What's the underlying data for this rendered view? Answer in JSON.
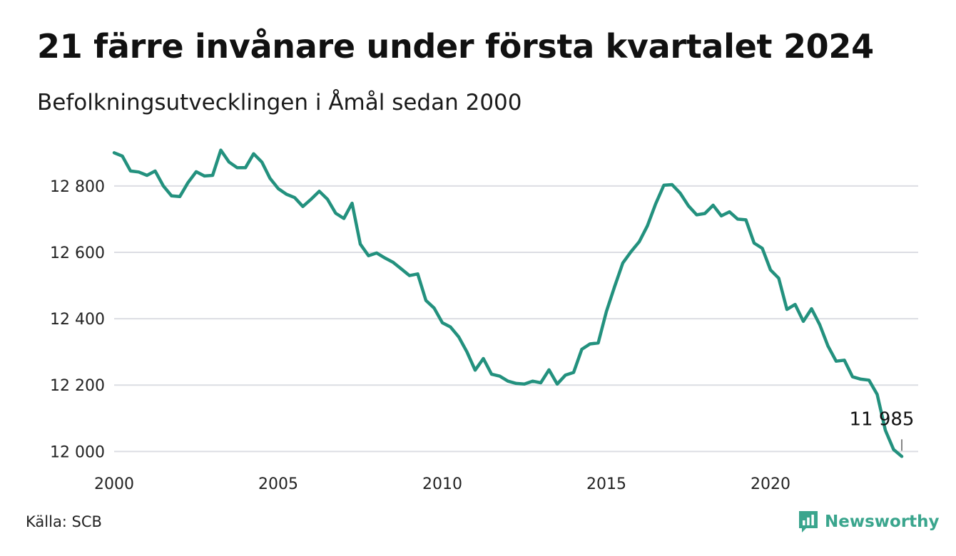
{
  "header": {
    "title": "21 färre invånare under första kvartalet 2024",
    "subtitle": "Befolkningsutvecklingen i Åmål sedan 2000"
  },
  "footer": {
    "source": "Källa: SCB",
    "brand": "Newsworthy",
    "brand_icon": "newsworthy-logo-icon"
  },
  "colors": {
    "line": "#23917e",
    "grid": "#dcdde3",
    "brand": "#3aa58d"
  },
  "chart_data": {
    "type": "line",
    "title": "21 färre invånare under första kvartalet 2024",
    "subtitle": "Befolkningsutvecklingen i Åmål sedan 2000",
    "x_start": "2000 Q1",
    "x_frequency": "quarterly",
    "xlim": [
      2000,
      2024.5
    ],
    "ylim": [
      11975,
      12920
    ],
    "x_ticks": [
      2000,
      2005,
      2010,
      2015,
      2020
    ],
    "x_tick_labels": [
      "2000",
      "2005",
      "2010",
      "2015",
      "2020"
    ],
    "y_ticks": [
      12000,
      12200,
      12400,
      12600,
      12800
    ],
    "y_tick_labels": [
      "12 000",
      "12 200",
      "12 400",
      "12 600",
      "12 800"
    ],
    "grid": "horizontal",
    "legend": "none",
    "series": [
      {
        "values": [
          12900,
          12890,
          12845,
          12842,
          12832,
          12845,
          12800,
          12770,
          12768,
          12810,
          12843,
          12830,
          12832,
          12908,
          12872,
          12855,
          12855,
          12897,
          12872,
          12823,
          12792,
          12775,
          12765,
          12738,
          12760,
          12784,
          12760,
          12718,
          12702,
          12748,
          12625,
          12590,
          12598,
          12583,
          12570,
          12550,
          12530,
          12535,
          12455,
          12432,
          12388,
          12375,
          12345,
          12300,
          12245,
          12280,
          12233,
          12227,
          12212,
          12205,
          12203,
          12212,
          12207,
          12246,
          12203,
          12230,
          12238,
          12308,
          12324,
          12327,
          12422,
          12497,
          12568,
          12602,
          12632,
          12680,
          12746,
          12802,
          12804,
          12778,
          12740,
          12713,
          12717,
          12742,
          12710,
          12722,
          12700,
          12698,
          12628,
          12612,
          12547,
          12522,
          12428,
          12443,
          12392,
          12430,
          12382,
          12318,
          12272,
          12275,
          12225,
          12218,
          12215,
          12172,
          12064,
          12006,
          11985
        ]
      }
    ],
    "annotations": [
      {
        "label": "11 985",
        "x": "2024 Q1",
        "y": 11985
      }
    ]
  }
}
